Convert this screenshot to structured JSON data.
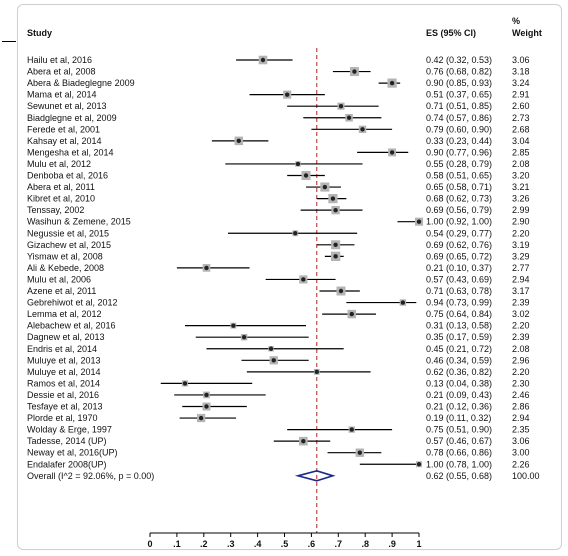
{
  "chart_data": {
    "type": "forest",
    "headers": {
      "study": "Study",
      "es": "ES (95% CI)",
      "weight_line1": "%",
      "weight_line2": "Weight"
    },
    "studies": [
      {
        "label": "Hailu et al, 2016",
        "es": 0.42,
        "lo": 0.32,
        "hi": 0.53,
        "ci_text": "0.42 (0.32, 0.53)",
        "weight": "3.06"
      },
      {
        "label": "Abera et al, 2008",
        "es": 0.76,
        "lo": 0.68,
        "hi": 0.82,
        "ci_text": "0.76 (0.68, 0.82)",
        "weight": "3.18"
      },
      {
        "label": "Abera & Biadeglegne 2009",
        "es": 0.9,
        "lo": 0.85,
        "hi": 0.93,
        "ci_text": "0.90 (0.85, 0.93)",
        "weight": "3.24"
      },
      {
        "label": "Mama et al, 2014",
        "es": 0.51,
        "lo": 0.37,
        "hi": 0.65,
        "ci_text": "0.51 (0.37, 0.65)",
        "weight": "2.91"
      },
      {
        "label": "Sewunet et al, 2013",
        "es": 0.71,
        "lo": 0.51,
        "hi": 0.85,
        "ci_text": "0.71 (0.51, 0.85)",
        "weight": "2.60"
      },
      {
        "label": "Biadglegne et al, 2009",
        "es": 0.74,
        "lo": 0.57,
        "hi": 0.86,
        "ci_text": "0.74 (0.57, 0.86)",
        "weight": "2.73"
      },
      {
        "label": "Ferede et al, 2001",
        "es": 0.79,
        "lo": 0.6,
        "hi": 0.9,
        "ci_text": "0.79 (0.60, 0.90)",
        "weight": "2.68"
      },
      {
        "label": "Kahsay et al, 2014",
        "es": 0.33,
        "lo": 0.23,
        "hi": 0.44,
        "ci_text": "0.33 (0.23, 0.44)",
        "weight": "3.04"
      },
      {
        "label": "Mengesha et al, 2014",
        "es": 0.9,
        "lo": 0.77,
        "hi": 0.96,
        "ci_text": "0.90 (0.77, 0.96)",
        "weight": "2.85"
      },
      {
        "label": "Mulu et al, 2012",
        "es": 0.55,
        "lo": 0.28,
        "hi": 0.79,
        "ci_text": "0.55 (0.28, 0.79)",
        "weight": "2.08"
      },
      {
        "label": "Denboba et al, 2016",
        "es": 0.58,
        "lo": 0.51,
        "hi": 0.65,
        "ci_text": "0.58 (0.51, 0.65)",
        "weight": "3.20"
      },
      {
        "label": "Abera et al, 2011",
        "es": 0.65,
        "lo": 0.58,
        "hi": 0.71,
        "ci_text": "0.65 (0.58, 0.71)",
        "weight": "3.21"
      },
      {
        "label": "Kibret et al, 2010",
        "es": 0.68,
        "lo": 0.62,
        "hi": 0.73,
        "ci_text": "0.68 (0.62, 0.73)",
        "weight": "3.26"
      },
      {
        "label": "Tenssay, 2002",
        "es": 0.69,
        "lo": 0.56,
        "hi": 0.79,
        "ci_text": "0.69 (0.56, 0.79)",
        "weight": "2.99"
      },
      {
        "label": "Wasihun & Zemene, 2015",
        "es": 1.0,
        "lo": 0.92,
        "hi": 1.0,
        "ci_text": "1.00 (0.92, 1.00)",
        "weight": "2.90"
      },
      {
        "label": "Negussie et al, 2015",
        "es": 0.54,
        "lo": 0.29,
        "hi": 0.77,
        "ci_text": "0.54 (0.29, 0.77)",
        "weight": "2.20"
      },
      {
        "label": "Gizachew et al, 2015",
        "es": 0.69,
        "lo": 0.62,
        "hi": 0.76,
        "ci_text": "0.69 (0.62, 0.76)",
        "weight": "3.19"
      },
      {
        "label": "Yismaw et al, 2008",
        "es": 0.69,
        "lo": 0.65,
        "hi": 0.72,
        "ci_text": "0.69 (0.65, 0.72)",
        "weight": "3.29"
      },
      {
        "label": "Ali & Kebede, 2008",
        "es": 0.21,
        "lo": 0.1,
        "hi": 0.37,
        "ci_text": "0.21 (0.10, 0.37)",
        "weight": "2.77"
      },
      {
        "label": "Mulu et al, 2006",
        "es": 0.57,
        "lo": 0.43,
        "hi": 0.69,
        "ci_text": "0.57 (0.43, 0.69)",
        "weight": "2.94"
      },
      {
        "label": "Azene et al, 2011",
        "es": 0.71,
        "lo": 0.63,
        "hi": 0.78,
        "ci_text": "0.71 (0.63, 0.78)",
        "weight": "3.17"
      },
      {
        "label": "Gebrehiwot et al, 2012",
        "es": 0.94,
        "lo": 0.73,
        "hi": 0.99,
        "ci_text": "0.94 (0.73, 0.99)",
        "weight": "2.39"
      },
      {
        "label": "Lemma et al, 2012",
        "es": 0.75,
        "lo": 0.64,
        "hi": 0.84,
        "ci_text": "0.75 (0.64, 0.84)",
        "weight": "3.02"
      },
      {
        "label": "Alebachew et al, 2016",
        "es": 0.31,
        "lo": 0.13,
        "hi": 0.58,
        "ci_text": "0.31 (0.13, 0.58)",
        "weight": "2.20"
      },
      {
        "label": "Dagnew et al, 2013",
        "es": 0.35,
        "lo": 0.17,
        "hi": 0.59,
        "ci_text": "0.35 (0.17, 0.59)",
        "weight": "2.39"
      },
      {
        "label": "Endris et al, 2014",
        "es": 0.45,
        "lo": 0.21,
        "hi": 0.72,
        "ci_text": "0.45 (0.21, 0.72)",
        "weight": "2.08"
      },
      {
        "label": "Muluye et al, 2013",
        "es": 0.46,
        "lo": 0.34,
        "hi": 0.59,
        "ci_text": "0.46 (0.34, 0.59)",
        "weight": "2.96"
      },
      {
        "label": "Muluye et al, 2014",
        "es": 0.62,
        "lo": 0.36,
        "hi": 0.82,
        "ci_text": "0.62 (0.36, 0.82)",
        "weight": "2.20"
      },
      {
        "label": "Ramos et al, 2014",
        "es": 0.13,
        "lo": 0.04,
        "hi": 0.38,
        "ci_text": "0.13 (0.04, 0.38)",
        "weight": "2.30"
      },
      {
        "label": "Dessie et al, 2016",
        "es": 0.21,
        "lo": 0.09,
        "hi": 0.43,
        "ci_text": "0.21 (0.09, 0.43)",
        "weight": "2.46"
      },
      {
        "label": "Tesfaye et al, 2013",
        "es": 0.21,
        "lo": 0.12,
        "hi": 0.36,
        "ci_text": "0.21 (0.12, 0.36)",
        "weight": "2.86"
      },
      {
        "label": "Plorde et al, 1970",
        "es": 0.19,
        "lo": 0.11,
        "hi": 0.32,
        "ci_text": "0.19 (0.11, 0.32)",
        "weight": "2.94"
      },
      {
        "label": "Wolday & Erge, 1997",
        "es": 0.75,
        "lo": 0.51,
        "hi": 0.9,
        "ci_text": "0.75 (0.51, 0.90)",
        "weight": "2.35"
      },
      {
        "label": "Tadesse, 2014 (UP)",
        "es": 0.57,
        "lo": 0.46,
        "hi": 0.67,
        "ci_text": "0.57 (0.46, 0.67)",
        "weight": "3.06"
      },
      {
        "label": "Neway et al, 2016(UP)",
        "es": 0.78,
        "lo": 0.66,
        "hi": 0.86,
        "ci_text": "0.78 (0.66, 0.86)",
        "weight": "3.00"
      },
      {
        "label": "Endalafer 2008(UP)",
        "es": 1.0,
        "lo": 0.78,
        "hi": 1.0,
        "ci_text": "1.00 (0.78, 1.00)",
        "weight": "2.26"
      }
    ],
    "overall": {
      "label": "Overall  (I^2 = 92.06%, p = 0.00)",
      "es": 0.62,
      "lo": 0.55,
      "hi": 0.68,
      "ci_text": "0.62 (0.55, 0.68)",
      "weight": "100.00"
    },
    "x_ticks": [
      {
        "value": 0,
        "label": "0"
      },
      {
        "value": 0.1,
        "label": ".1"
      },
      {
        "value": 0.2,
        "label": ".2"
      },
      {
        "value": 0.3,
        "label": ".3"
      },
      {
        "value": 0.4,
        "label": ".4"
      },
      {
        "value": 0.5,
        "label": ".5"
      },
      {
        "value": 0.6,
        "label": ".6"
      },
      {
        "value": 0.7,
        "label": ".7"
      },
      {
        "value": 0.8,
        "label": ".8"
      },
      {
        "value": 0.9,
        "label": ".9"
      },
      {
        "value": 1,
        "label": "1"
      }
    ],
    "xlim": [
      0,
      1
    ],
    "reference_line": 0.62,
    "colors": {
      "reference": "#b22222",
      "diamond": "#1a2a8c",
      "box": "#b4b4b4",
      "text": "#111111"
    }
  }
}
